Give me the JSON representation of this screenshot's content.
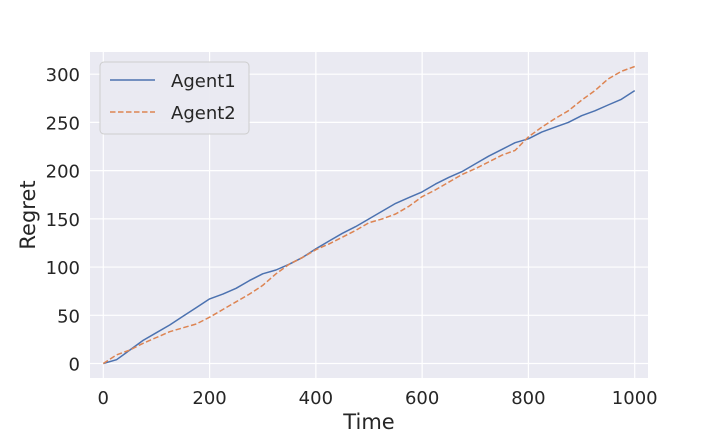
{
  "chart_data": {
    "type": "line",
    "title": "",
    "xlabel": "Time",
    "ylabel": "Regret",
    "xlim": [
      -25,
      1025
    ],
    "ylim": [
      -15,
      323
    ],
    "xticks": [
      0,
      200,
      400,
      600,
      800,
      1000
    ],
    "yticks": [
      0,
      50,
      100,
      150,
      200,
      250,
      300
    ],
    "grid": true,
    "legend_position": "top-left",
    "series": [
      {
        "name": "Agent1",
        "color": "#4c72b0",
        "dash": "solid",
        "x": [
          0,
          25,
          50,
          75,
          100,
          125,
          150,
          175,
          200,
          225,
          250,
          275,
          300,
          325,
          350,
          375,
          400,
          425,
          450,
          475,
          500,
          525,
          550,
          575,
          600,
          625,
          650,
          675,
          700,
          725,
          750,
          775,
          800,
          825,
          850,
          875,
          900,
          925,
          950,
          975,
          1000
        ],
        "y": [
          0,
          4,
          14,
          24,
          32,
          40,
          49,
          58,
          67,
          72,
          78,
          86,
          93,
          97,
          103,
          110,
          119,
          127,
          135,
          142,
          150,
          158,
          166,
          172,
          178,
          186,
          193,
          199,
          207,
          215,
          222,
          229,
          233,
          240,
          245,
          250,
          257,
          262,
          268,
          274,
          283
        ]
      },
      {
        "name": "Agent2",
        "color": "#dd8452",
        "dash": "dashed",
        "x": [
          0,
          25,
          50,
          75,
          100,
          125,
          150,
          175,
          200,
          225,
          250,
          275,
          300,
          325,
          350,
          375,
          400,
          425,
          450,
          475,
          500,
          525,
          550,
          575,
          600,
          625,
          650,
          675,
          700,
          725,
          750,
          775,
          800,
          825,
          850,
          875,
          900,
          925,
          950,
          975,
          1000
        ],
        "y": [
          0,
          9,
          14,
          21,
          27,
          33,
          37,
          41,
          48,
          56,
          64,
          72,
          81,
          93,
          103,
          110,
          118,
          124,
          131,
          138,
          146,
          150,
          155,
          163,
          173,
          180,
          188,
          196,
          202,
          209,
          216,
          221,
          235,
          245,
          254,
          262,
          273,
          283,
          295,
          303,
          308
        ]
      }
    ]
  }
}
